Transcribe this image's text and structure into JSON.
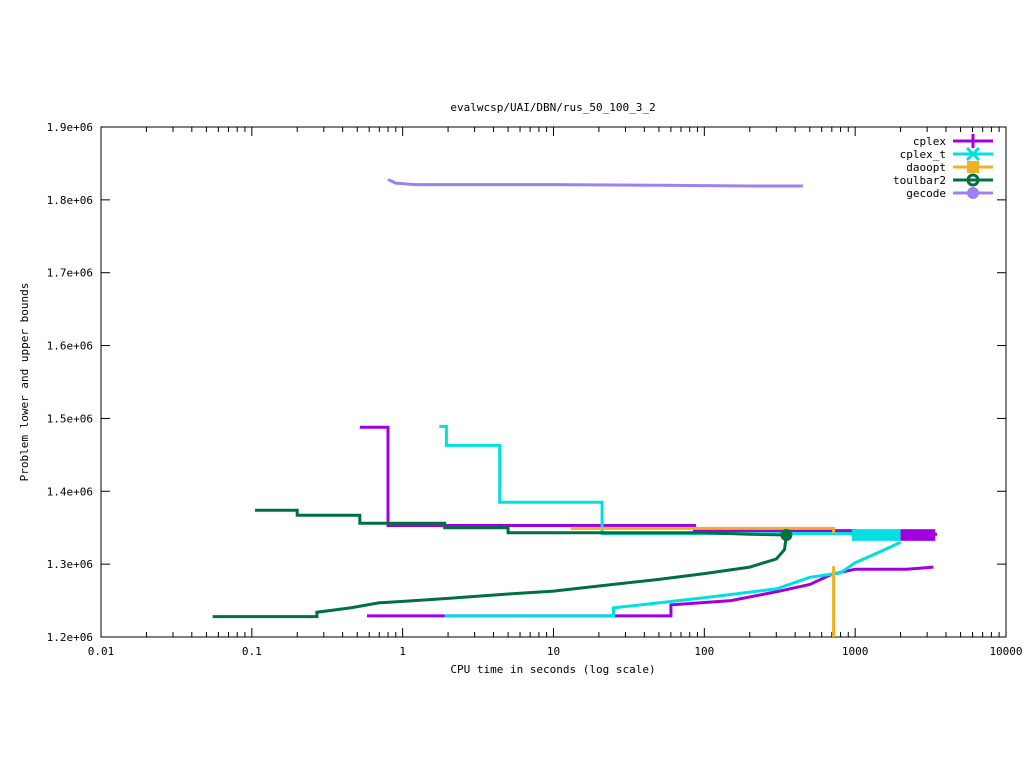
{
  "chart_data": {
    "type": "line",
    "title": "evalwcsp/UAI/DBN/rus_50_100_3_2",
    "xlabel": "CPU time in seconds (log scale)",
    "ylabel": "Problem lower and upper bounds",
    "xscale": "log",
    "xlim": [
      0.01,
      10000
    ],
    "ylim": [
      1200000,
      1900000
    ],
    "xticks": [
      0.01,
      0.1,
      1,
      10,
      100,
      1000,
      10000
    ],
    "xtick_labels": [
      "0.01",
      "0.1",
      "1",
      "10",
      "100",
      "1000",
      "10000"
    ],
    "yticks": [
      1200000,
      1300000,
      1400000,
      1500000,
      1600000,
      1700000,
      1800000,
      1900000
    ],
    "ytick_labels": [
      "1.2e+06",
      "1.3e+06",
      "1.4e+06",
      "1.5e+06",
      "1.6e+06",
      "1.7e+06",
      "1.8e+06",
      "1.9e+06"
    ],
    "legend_position": "top-right",
    "grid": false,
    "series": [
      {
        "name": "cplex",
        "color": "#a000e0",
        "marker": "plus",
        "upper": [
          [
            0.52,
            1488000
          ],
          [
            0.8,
            1488000
          ],
          [
            0.8,
            1353000
          ],
          [
            86,
            1353000
          ],
          [
            86,
            1346000
          ],
          [
            1000,
            1346000
          ],
          [
            1000,
            1341000
          ],
          [
            3500,
            1341000
          ]
        ],
        "lower": [
          [
            0.58,
            1229000
          ],
          [
            60,
            1229000
          ],
          [
            60,
            1244000
          ],
          [
            150,
            1250000
          ],
          [
            300,
            1262000
          ],
          [
            500,
            1272000
          ],
          [
            700,
            1286000
          ],
          [
            1000,
            1293000
          ],
          [
            2200,
            1293000
          ],
          [
            3300,
            1296000
          ]
        ]
      },
      {
        "name": "cplex_t",
        "color": "#00e0e0",
        "marker": "x",
        "upper": [
          [
            1.75,
            1489000
          ],
          [
            1.95,
            1489000
          ],
          [
            1.95,
            1463000
          ],
          [
            4.4,
            1463000
          ],
          [
            4.4,
            1385000
          ],
          [
            21,
            1385000
          ],
          [
            21,
            1342000
          ],
          [
            1000,
            1342000
          ],
          [
            1000,
            1339000
          ],
          [
            2000,
            1339000
          ]
        ],
        "lower": [
          [
            1.9,
            1229000
          ],
          [
            25,
            1229000
          ],
          [
            25,
            1240000
          ],
          [
            100,
            1254000
          ],
          [
            300,
            1266000
          ],
          [
            500,
            1282000
          ],
          [
            800,
            1288000
          ],
          [
            1000,
            1302000
          ],
          [
            1500,
            1318000
          ],
          [
            2000,
            1330000
          ]
        ]
      },
      {
        "name": "daoopt",
        "color": "#f0b020",
        "marker": "square",
        "upper": [
          [
            13,
            1349000
          ],
          [
            720,
            1349000
          ],
          [
            720,
            1342000
          ]
        ],
        "lower": [
          [
            720,
            1297000
          ],
          [
            720,
            1200000
          ]
        ]
      },
      {
        "name": "toulbar2",
        "color": "#007040",
        "marker": "circle",
        "upper": [
          [
            0.105,
            1374000
          ],
          [
            0.2,
            1374000
          ],
          [
            0.2,
            1367000
          ],
          [
            0.52,
            1367000
          ],
          [
            0.52,
            1356000
          ],
          [
            1.9,
            1356000
          ],
          [
            1.9,
            1350000
          ],
          [
            5,
            1350000
          ],
          [
            5,
            1343000
          ],
          [
            100,
            1343000
          ],
          [
            200,
            1341000
          ],
          [
            350,
            1340000
          ]
        ],
        "lower": [
          [
            0.055,
            1228000
          ],
          [
            0.27,
            1228000
          ],
          [
            0.27,
            1234000
          ],
          [
            0.45,
            1240000
          ],
          [
            0.7,
            1247000
          ],
          [
            1.2,
            1250000
          ],
          [
            2,
            1253000
          ],
          [
            5,
            1259000
          ],
          [
            10,
            1263000
          ],
          [
            20,
            1270000
          ],
          [
            50,
            1279000
          ],
          [
            100,
            1287000
          ],
          [
            200,
            1296000
          ],
          [
            300,
            1307000
          ],
          [
            340,
            1320000
          ],
          [
            350,
            1340000
          ]
        ]
      },
      {
        "name": "gecode",
        "color": "#a080f0",
        "marker": "circle-filled",
        "upper": [
          [
            0.8,
            1828000
          ],
          [
            0.9,
            1823000
          ],
          [
            1.2,
            1821000
          ],
          [
            10,
            1821000
          ],
          [
            50,
            1820000
          ],
          [
            200,
            1819000
          ],
          [
            450,
            1819000
          ]
        ],
        "lower": []
      }
    ]
  }
}
